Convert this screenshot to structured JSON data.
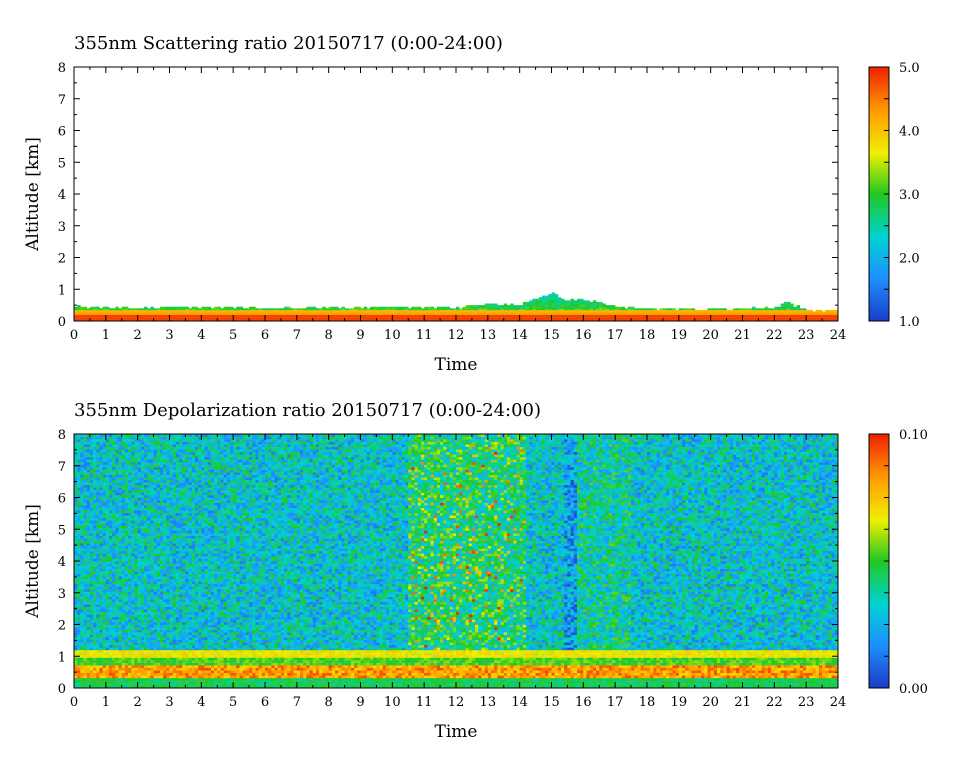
{
  "chart_data": [
    {
      "type": "heatmap",
      "title": "355nm Scattering ratio  20150717 (0:00-24:00)",
      "xlabel": "Time",
      "ylabel": "Altitude [km]",
      "xlim": [
        0,
        24
      ],
      "ylim": [
        0,
        8
      ],
      "x_ticks": [
        "0",
        "1",
        "2",
        "3",
        "4",
        "5",
        "6",
        "7",
        "8",
        "9",
        "10",
        "11",
        "12",
        "13",
        "14",
        "15",
        "16",
        "17",
        "18",
        "19",
        "20",
        "21",
        "22",
        "23",
        "24"
      ],
      "y_ticks": [
        "0",
        "1",
        "2",
        "3",
        "4",
        "5",
        "6",
        "7",
        "8"
      ],
      "colorbar": {
        "min": 1.0,
        "max": 5.0,
        "ticks": [
          "1.0",
          "2.0",
          "3.0",
          "4.0",
          "5.0"
        ]
      },
      "colormap": [
        "#1a3cc8",
        "#1e90ff",
        "#00d2d2",
        "#22c822",
        "#f0f000",
        "#ff9a00",
        "#f02000"
      ],
      "features": {
        "surface_layer_top_km": [
          [
            0,
            0.45
          ],
          [
            2,
            0.42
          ],
          [
            4,
            0.44
          ],
          [
            6,
            0.4
          ],
          [
            8,
            0.42
          ],
          [
            10,
            0.45
          ],
          [
            12,
            0.42
          ],
          [
            13,
            0.55
          ],
          [
            14,
            0.5
          ],
          [
            15,
            0.9
          ],
          [
            15.5,
            0.65
          ],
          [
            16,
            0.7
          ],
          [
            17,
            0.45
          ],
          [
            18,
            0.4
          ],
          [
            20,
            0.38
          ],
          [
            22,
            0.42
          ],
          [
            22.4,
            0.6
          ],
          [
            23,
            0.35
          ],
          [
            24,
            0.32
          ]
        ],
        "peak_layer_km": 0.3
      }
    },
    {
      "type": "heatmap",
      "title": "355nm Depolarization ratio  20150717 (0:00-24:00)",
      "xlabel": "Time",
      "ylabel": "Altitude [km]",
      "xlim": [
        0,
        24
      ],
      "ylim": [
        0,
        8
      ],
      "x_ticks": [
        "0",
        "1",
        "2",
        "3",
        "4",
        "5",
        "6",
        "7",
        "8",
        "9",
        "10",
        "11",
        "12",
        "13",
        "14",
        "15",
        "16",
        "17",
        "18",
        "19",
        "20",
        "21",
        "22",
        "23",
        "24"
      ],
      "y_ticks": [
        "0",
        "1",
        "2",
        "3",
        "4",
        "5",
        "6",
        "7",
        "8"
      ],
      "colorbar": {
        "min": 0.0,
        "max": 0.1,
        "ticks": [
          "0.00",
          "0.10"
        ]
      },
      "colormap": [
        "#1a3cc8",
        "#1e90ff",
        "#00d2d2",
        "#22c822",
        "#f0f000",
        "#ff9a00",
        "#f02000"
      ],
      "features": {
        "boundary_layer_top_km": 1.2,
        "elevated_dust_band_time_h": [
          10.5,
          14.2
        ],
        "low_depol_column_time_h": [
          15.4,
          15.8
        ]
      }
    }
  ]
}
